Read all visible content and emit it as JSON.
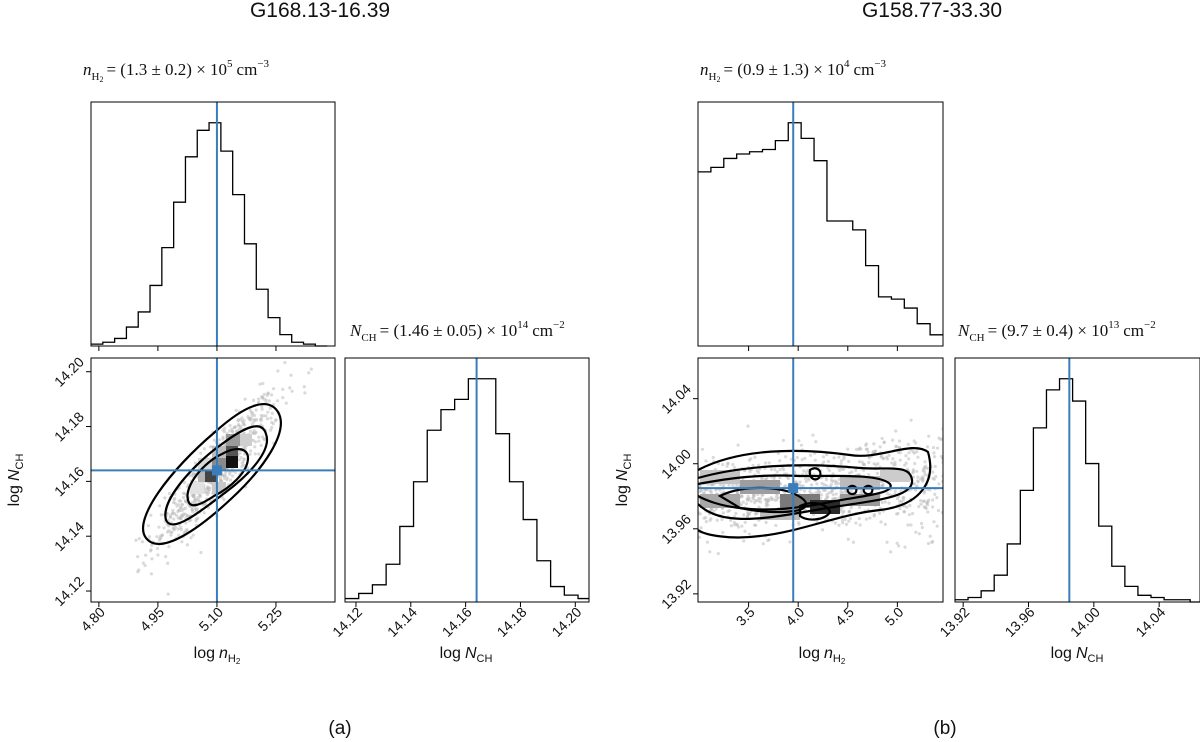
{
  "figure": {
    "panel_a": {
      "title": "G168.13-16.39",
      "caption": "(a)",
      "stat_nh2": "= (1.3 ± 0.2) × 10",
      "stat_nh2_exp": "5",
      "stat_nch": "= (1.46 ± 0.05) × 10",
      "stat_nch_exp": "14"
    },
    "panel_b": {
      "title": "G158.77-33.30",
      "caption": "(b)",
      "stat_nh2": "= (0.9 ± 1.3) × 10",
      "stat_nh2_exp": "4",
      "stat_nch": "= (9.7 ± 0.4) × 10",
      "stat_nch_exp": "13"
    },
    "unit_cm": "cm",
    "unit_exp": "−3",
    "unit_exp2": "−2",
    "label_log": "log",
    "var_n": "n",
    "var_N": "N",
    "sub_h2": "H",
    "sub_h2_2": "2",
    "sub_ch": "CH"
  },
  "colors": {
    "truth": "#3a7dba",
    "hist": "#000000",
    "scatter": "#bbbbbb"
  },
  "chart_data": [
    {
      "type": "histogram",
      "panel": "a",
      "xlabel": "log nH2",
      "xlim": [
        4.78,
        5.4
      ],
      "xticks": [
        "4.80",
        "4.95",
        "5.10",
        "5.25"
      ],
      "xtick_values": [
        4.8,
        4.95,
        5.1,
        5.25
      ],
      "bins": [
        4.78,
        4.81,
        4.84,
        4.87,
        4.9,
        4.93,
        4.96,
        4.99,
        5.02,
        5.05,
        5.08,
        5.11,
        5.14,
        5.17,
        5.2,
        5.23,
        5.26,
        5.29,
        5.32,
        5.35,
        5.38
      ],
      "counts": [
        1,
        2,
        4,
        10,
        18,
        32,
        52,
        76,
        100,
        114,
        118,
        103,
        80,
        54,
        30,
        15,
        6,
        2,
        1,
        0
      ],
      "truth": 5.1
    },
    {
      "type": "histogram",
      "panel": "a",
      "xlabel": "log NCH",
      "xlim": [
        14.116,
        14.205
      ],
      "xticks": [
        "14.12",
        "14.14",
        "14.16",
        "14.18",
        "14.20"
      ],
      "xtick_values": [
        14.12,
        14.14,
        14.16,
        14.18,
        14.2
      ],
      "bins": [
        14.116,
        14.121,
        14.126,
        14.131,
        14.136,
        14.141,
        14.146,
        14.151,
        14.156,
        14.161,
        14.166,
        14.171,
        14.176,
        14.181,
        14.186,
        14.191,
        14.196,
        14.201,
        14.206
      ],
      "counts": [
        2,
        5,
        10,
        22,
        44,
        70,
        100,
        112,
        118,
        130,
        130,
        98,
        70,
        48,
        24,
        9,
        4,
        2
      ],
      "truth": 14.164
    },
    {
      "type": "scatter_contour",
      "panel": "a",
      "xlabel": "log nH2",
      "ylabel": "log NCH",
      "xlim": [
        4.78,
        5.4
      ],
      "ylim": [
        14.116,
        14.205
      ],
      "xticks": [
        "4.80",
        "4.95",
        "5.10",
        "5.25"
      ],
      "xtick_values": [
        4.8,
        4.95,
        5.1,
        5.25
      ],
      "yticks": [
        "14.12",
        "14.14",
        "14.16",
        "14.18",
        "14.20"
      ],
      "ytick_values": [
        14.12,
        14.14,
        14.16,
        14.18,
        14.2
      ],
      "center": [
        5.1,
        14.164
      ],
      "sigma": [
        0.08,
        0.014
      ],
      "correlation": 0.9,
      "truth": [
        5.1,
        14.164
      ]
    },
    {
      "type": "histogram",
      "panel": "b",
      "xlabel": "log nH2",
      "xlim": [
        2.99,
        5.46
      ],
      "xticks": [
        "3.5",
        "4.0",
        "4.5",
        "5.0"
      ],
      "xtick_values": [
        3.5,
        4.0,
        4.5,
        5.0
      ],
      "bins": [
        2.99,
        3.12,
        3.25,
        3.38,
        3.51,
        3.64,
        3.77,
        3.9,
        4.03,
        4.16,
        4.29,
        4.42,
        4.55,
        4.68,
        4.81,
        4.94,
        5.07,
        5.2,
        5.33,
        5.46
      ],
      "counts": [
        78,
        80,
        84,
        86,
        87,
        88,
        92,
        100,
        93,
        83,
        56,
        56,
        52,
        36,
        22,
        21,
        17,
        10,
        5
      ],
      "truth": 3.95
    },
    {
      "type": "histogram",
      "panel": "b",
      "xlabel": "log NCH",
      "xlim": [
        13.915,
        14.065
      ],
      "xticks": [
        "13.92",
        "13.96",
        "14.00",
        "14.04"
      ],
      "xtick_values": [
        13.92,
        13.96,
        14.0,
        14.04
      ],
      "bins": [
        13.915,
        13.923,
        13.931,
        13.939,
        13.947,
        13.955,
        13.963,
        13.971,
        13.979,
        13.987,
        13.995,
        14.003,
        14.011,
        14.019,
        14.027,
        14.035,
        14.043,
        14.051,
        14.059,
        14.067
      ],
      "counts": [
        1,
        2,
        5,
        12,
        26,
        50,
        78,
        95,
        100,
        90,
        62,
        34,
        16,
        7,
        3,
        2,
        1,
        1,
        0
      ],
      "truth": 13.985
    },
    {
      "type": "scatter_contour",
      "panel": "b",
      "xlabel": "log nH2",
      "ylabel": "log NCH",
      "xlim": [
        2.99,
        5.46
      ],
      "ylim": [
        13.915,
        14.065
      ],
      "xticks": [
        "3.5",
        "4.0",
        "4.5",
        "5.0"
      ],
      "xtick_values": [
        3.5,
        4.0,
        4.5,
        5.0
      ],
      "yticks": [
        "13.92",
        "13.96",
        "14.00",
        "14.04"
      ],
      "ytick_values": [
        13.92,
        13.96,
        14.0,
        14.04
      ],
      "center": [
        4.0,
        13.984
      ],
      "sigma": [
        0.65,
        0.012
      ],
      "correlation": 0.1,
      "truth": [
        3.95,
        13.985
      ]
    }
  ]
}
